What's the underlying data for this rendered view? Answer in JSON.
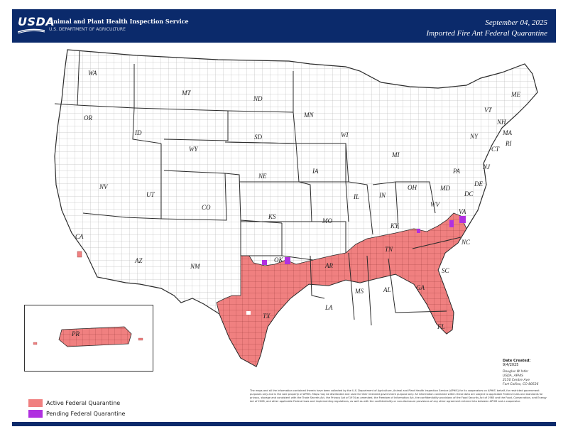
{
  "header": {
    "agency": "Animal and Plant Health Inspection Service",
    "agency_sub": "U.S. DEPARTMENT OF AGRICULTURE",
    "logo": "USDA",
    "date": "September 04, 2025",
    "title": "Imported Fire Ant Federal Quarantine"
  },
  "colors": {
    "header_bg": "#0b2a6b",
    "active": "#f08080",
    "pending": "#b030e0",
    "state_border": "#333333",
    "county_border": "#9a9a9a"
  },
  "states": [
    "WA",
    "OR",
    "CA",
    "NV",
    "ID",
    "MT",
    "WY",
    "UT",
    "AZ",
    "CO",
    "NM",
    "ND",
    "SD",
    "NE",
    "KS",
    "OK",
    "TX",
    "MN",
    "IA",
    "MO",
    "AR",
    "LA",
    "WI",
    "IL",
    "MI",
    "IN",
    "OH",
    "KY",
    "TN",
    "MS",
    "AL",
    "GA",
    "FL",
    "SC",
    "NC",
    "VA",
    "WV",
    "PA",
    "NY",
    "MD",
    "DE",
    "NJ",
    "CT",
    "RI",
    "MA",
    "VT",
    "NH",
    "ME",
    "DC",
    "PR"
  ],
  "legend": {
    "active_label": "Active Federal Quarantine",
    "pending_label": "Pending Federal Quarantine"
  },
  "date_created": {
    "label": "Date Created:",
    "value": "9/4/2025"
  },
  "author": {
    "name": "Douglas W Infer",
    "org": "USDA, APHIS",
    "address": "2150 Centre Ave",
    "city": "Fort Collins, CO 80526"
  },
  "disclaimer": "The maps and all the information contained therein have been collected by the U.S. Department of Agriculture, Animal and Plant Health Inspection Service (APHIS) for its cooperators on APHIS' behalf, for restricted government purposes only and is the sole property of APHIS. Maps may be distributed and used for their intended government purpose only. All information contained within these data are subject to applicable Federal rules and standards for privacy, storage and consistent with the Trade Secrets Act, the Privacy Act of 1974 as amended, the Freedom of Information Act, the confidentiality provisions of the Food Security Act of 1985 and the Food, Conservation, and Energy Act of 2008, and other applicable Federal laws and implementing regulations, as well as with the confidentiality or non-disclosure provisions of any other agreement entered into between APHIS and a cooperator."
}
